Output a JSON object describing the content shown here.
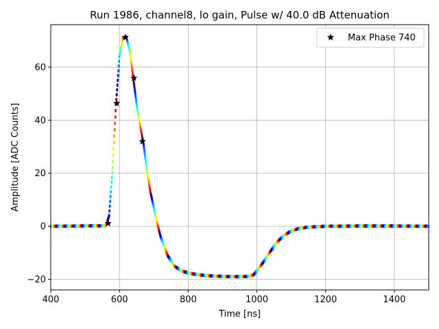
{
  "chart_data": {
    "type": "scatter",
    "title": "Run 1986, channel8, lo gain, Pulse w/ 40.0 dB Attenuation",
    "xlabel": "Time [ns]",
    "ylabel": "Amplitude [ADC Counts]",
    "xlim": [
      400,
      1500
    ],
    "ylim": [
      -24,
      76
    ],
    "xticks": [
      400,
      600,
      800,
      1000,
      1200,
      1400
    ],
    "yticks": [
      -20,
      0,
      20,
      40,
      60
    ],
    "xtick_labels": [
      "400",
      "600",
      "800",
      "1000",
      "1200",
      "1400"
    ],
    "ytick_labels": [
      "−20",
      "0",
      "20",
      "40",
      "60"
    ],
    "grid": true,
    "legend_position": "top-right",
    "colormap": "jet",
    "pulse_curve": {
      "description": "dense colored scatter of sampled pulse shape",
      "x": [
        400,
        560,
        570,
        580,
        590,
        600,
        610,
        620,
        630,
        640,
        650,
        660,
        670,
        680,
        690,
        700,
        710,
        720,
        740,
        760,
        780,
        800,
        820,
        850,
        900,
        950,
        975,
        990,
        1000,
        1020,
        1040,
        1060,
        1080,
        1100,
        1120,
        1150,
        1200,
        1300,
        1400,
        1500
      ],
      "y": [
        0,
        0.2,
        4,
        22,
        46,
        64,
        71,
        71.3,
        66,
        56,
        46,
        38,
        31,
        21,
        13,
        7,
        1,
        -4,
        -11,
        -15,
        -16.8,
        -17.6,
        -18.1,
        -18.6,
        -18.9,
        -19,
        -18.9,
        -18.3,
        -16.8,
        -13.3,
        -9.3,
        -5.8,
        -3.3,
        -1.8,
        -0.9,
        -0.3,
        0,
        0.1,
        0.1,
        0
      ]
    },
    "series": [
      {
        "name": "Max Phase 740",
        "marker": "star",
        "color": "#000000",
        "x": [
          567,
          592,
          617,
          642,
          667
        ],
        "y": [
          1.1,
          46.4,
          71.2,
          55.9,
          32.0
        ]
      }
    ]
  }
}
